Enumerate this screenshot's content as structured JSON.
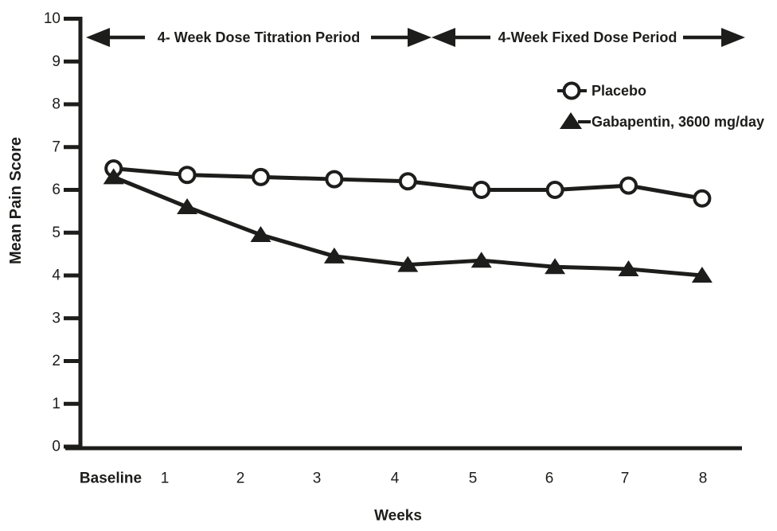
{
  "figure": {
    "background": "#ffffff",
    "ink_color": "#1d1d1b"
  },
  "chart_data": {
    "type": "line",
    "title": "",
    "xlabel": "Weeks",
    "ylabel": "Mean Pain Score",
    "ylim": [
      0,
      10
    ],
    "yticks": [
      "0",
      "1",
      "2",
      "3",
      "4",
      "5",
      "6",
      "7",
      "8",
      "9",
      "10"
    ],
    "categories": [
      "Baseline",
      "1",
      "2",
      "3",
      "4",
      "5",
      "6",
      "7",
      "8"
    ],
    "grid": false,
    "legend_position": "upper-right-inside",
    "series": [
      {
        "name": "Placebo",
        "marker": "open-circle",
        "color": "#1d1d1b",
        "values": [
          6.5,
          6.35,
          6.3,
          6.25,
          6.2,
          6.0,
          6.0,
          6.1,
          5.8
        ]
      },
      {
        "name": "Gabapentin, 3600 mg/day",
        "marker": "filled-triangle",
        "color": "#1d1d1b",
        "values": [
          6.3,
          5.6,
          4.95,
          4.45,
          4.25,
          4.35,
          4.2,
          4.15,
          4.0
        ]
      }
    ],
    "annotations": [
      {
        "label": "4- Week Dose Titration Period",
        "style": "double-headed-arrow",
        "span_weeks": "Baseline to 4"
      },
      {
        "label": "4-Week Fixed Dose Period",
        "style": "double-headed-arrow",
        "span_weeks": "4 to 8"
      }
    ]
  }
}
